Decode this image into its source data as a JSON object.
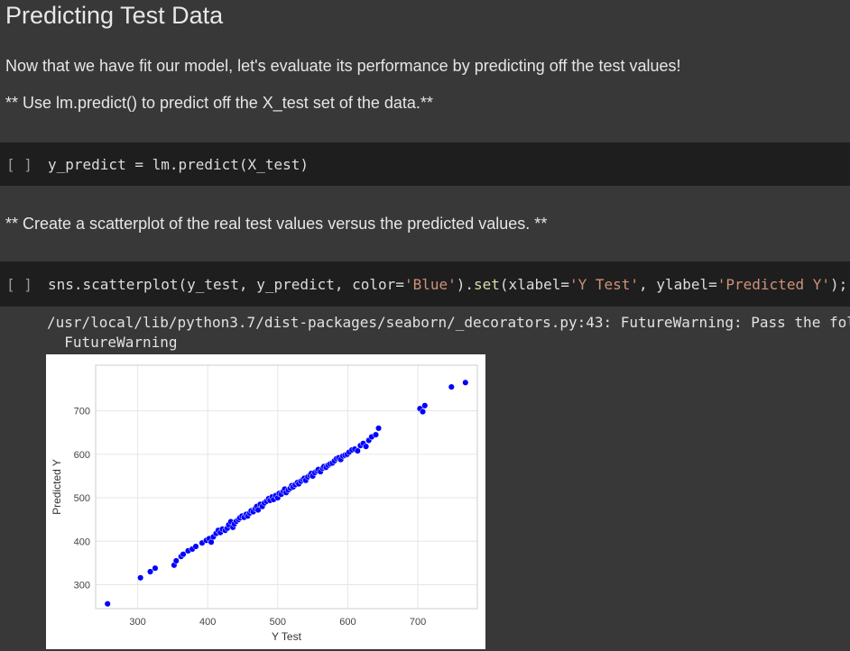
{
  "markdown": {
    "heading": "Predicting Test Data",
    "para1": "Now that we have fit our model, let's evaluate its performance by predicting off the test values!",
    "para2": "** Use lm.predict() to predict off the X_test set of the data.**",
    "para3": "** Create a scatterplot of the real test values versus the predicted values. **"
  },
  "cell1": {
    "prompt": "[ ]",
    "code": "y_predict = lm.predict(X_test)"
  },
  "cell2": {
    "prompt": "[ ]",
    "code_a": "sns.scatterplot(y_test, y_predict, color=",
    "code_str1": "'Blue'",
    "code_b": ").",
    "code_fn": "set",
    "code_c": "(xlabel=",
    "code_str2": "'Y Test'",
    "code_d": ", ylabel=",
    "code_str3": "'Predicted Y'",
    "code_e": ");"
  },
  "output": {
    "warning_line1": "/usr/local/lib/python3.7/dist-packages/seaborn/_decorators.py:43: FutureWarning: Pass the fol",
    "warning_line2": "  FutureWarning"
  },
  "chart_data": {
    "type": "scatter",
    "xlabel": "Y Test",
    "ylabel": "Predicted Y",
    "xticks": [
      300,
      400,
      500,
      600,
      700
    ],
    "yticks": [
      300,
      400,
      500,
      600,
      700
    ],
    "xlim": [
      240,
      785
    ],
    "ylim": [
      245,
      805
    ],
    "grid": true,
    "color": "#0000ff",
    "points": [
      [
        257,
        256
      ],
      [
        304,
        316
      ],
      [
        318,
        330
      ],
      [
        325,
        338
      ],
      [
        352,
        345
      ],
      [
        355,
        355
      ],
      [
        362,
        365
      ],
      [
        365,
        370
      ],
      [
        372,
        378
      ],
      [
        378,
        382
      ],
      [
        383,
        388
      ],
      [
        392,
        396
      ],
      [
        398,
        402
      ],
      [
        402,
        406
      ],
      [
        405,
        398
      ],
      [
        408,
        410
      ],
      [
        412,
        418
      ],
      [
        415,
        425
      ],
      [
        418,
        420
      ],
      [
        421,
        428
      ],
      [
        425,
        425
      ],
      [
        428,
        430
      ],
      [
        430,
        438
      ],
      [
        433,
        445
      ],
      [
        436,
        432
      ],
      [
        438,
        440
      ],
      [
        441,
        446
      ],
      [
        444,
        450
      ],
      [
        446,
        454
      ],
      [
        449,
        458
      ],
      [
        452,
        455
      ],
      [
        455,
        462
      ],
      [
        457,
        458
      ],
      [
        460,
        465
      ],
      [
        462,
        470
      ],
      [
        465,
        468
      ],
      [
        468,
        475
      ],
      [
        470,
        480
      ],
      [
        472,
        472
      ],
      [
        475,
        485
      ],
      [
        478,
        480
      ],
      [
        481,
        488
      ],
      [
        484,
        492
      ],
      [
        487,
        498
      ],
      [
        489,
        494
      ],
      [
        492,
        502
      ],
      [
        494,
        496
      ],
      [
        497,
        505
      ],
      [
        500,
        500
      ],
      [
        502,
        510
      ],
      [
        505,
        508
      ],
      [
        508,
        515
      ],
      [
        510,
        520
      ],
      [
        512,
        512
      ],
      [
        515,
        518
      ],
      [
        518,
        522
      ],
      [
        520,
        528
      ],
      [
        522,
        525
      ],
      [
        525,
        530
      ],
      [
        528,
        535
      ],
      [
        530,
        532
      ],
      [
        533,
        538
      ],
      [
        536,
        542
      ],
      [
        538,
        545
      ],
      [
        540,
        540
      ],
      [
        543,
        548
      ],
      [
        546,
        552
      ],
      [
        548,
        556
      ],
      [
        550,
        550
      ],
      [
        553,
        558
      ],
      [
        556,
        562
      ],
      [
        558,
        565
      ],
      [
        561,
        560
      ],
      [
        564,
        568
      ],
      [
        566,
        572
      ],
      [
        569,
        570
      ],
      [
        572,
        575
      ],
      [
        575,
        578
      ],
      [
        578,
        580
      ],
      [
        581,
        585
      ],
      [
        584,
        590
      ],
      [
        587,
        592
      ],
      [
        590,
        588
      ],
      [
        593,
        596
      ],
      [
        596,
        598
      ],
      [
        599,
        600
      ],
      [
        602,
        605
      ],
      [
        606,
        610
      ],
      [
        610,
        612
      ],
      [
        614,
        608
      ],
      [
        618,
        620
      ],
      [
        622,
        625
      ],
      [
        626,
        618
      ],
      [
        630,
        632
      ],
      [
        634,
        640
      ],
      [
        640,
        645
      ],
      [
        644,
        660
      ],
      [
        703,
        705
      ],
      [
        707,
        698
      ],
      [
        710,
        712
      ],
      [
        748,
        755
      ],
      [
        768,
        765
      ]
    ]
  }
}
